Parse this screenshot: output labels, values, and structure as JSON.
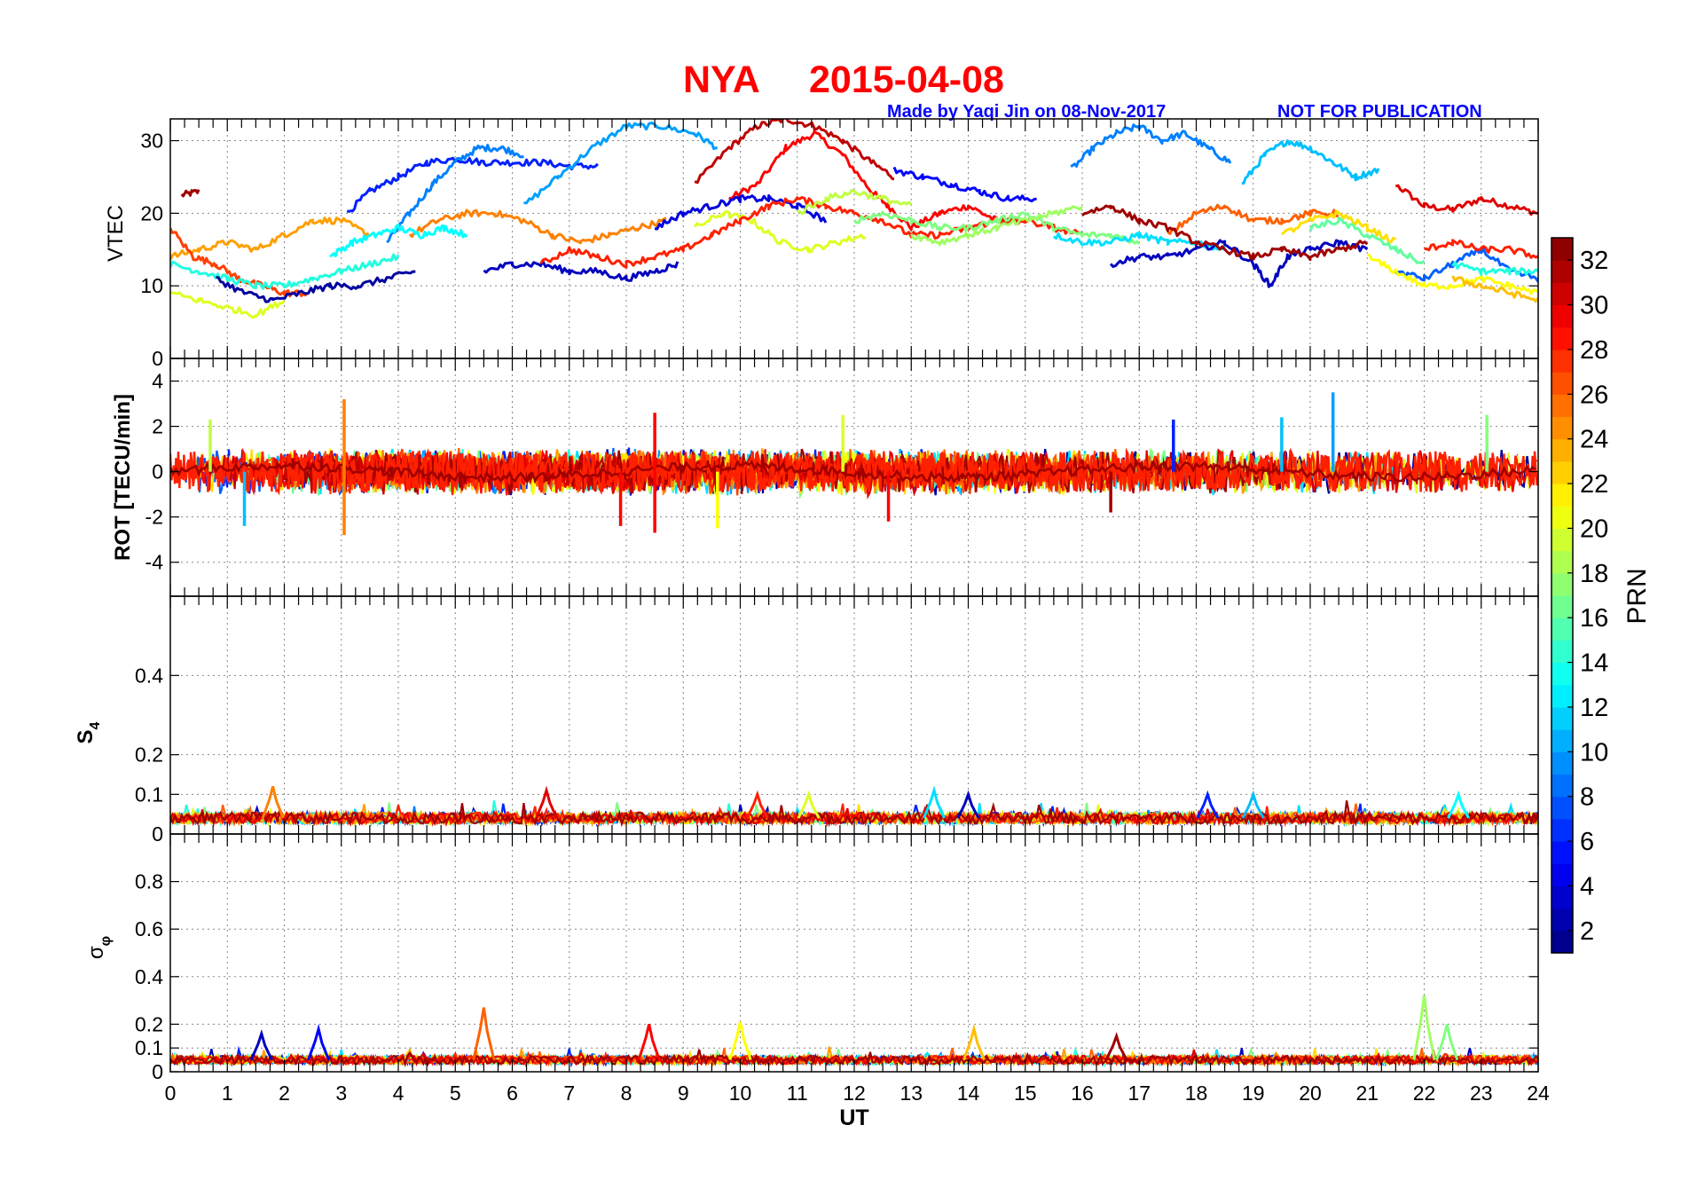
{
  "title": {
    "station": "NYA",
    "date": "2015-04-08",
    "credit": "Made by Yaqi Jin on 08-Nov-2017",
    "notice": "NOT FOR PUBLICATION"
  },
  "chart_data": [
    {
      "type": "line",
      "panel": "vtec",
      "ylabel": "VTEC",
      "xlim": [
        0,
        24
      ],
      "ylim": [
        0,
        33
      ],
      "yticks": [
        0,
        10,
        20,
        30
      ],
      "series": [
        {
          "prn": 32,
          "x": [
            0.2,
            0.5
          ],
          "y": [
            22.5,
            23
          ]
        },
        {
          "prn": 30,
          "x": [
            21.5,
            22,
            22.5,
            23,
            23.5,
            24
          ],
          "y": [
            24,
            21,
            20.5,
            22,
            21,
            20
          ]
        },
        {
          "prn": 29,
          "x": [
            9.8,
            10.3,
            10.8,
            11.3,
            11.8,
            12.3,
            12.6,
            13,
            13.5,
            14,
            14.5,
            15
          ],
          "y": [
            22,
            24,
            29,
            31,
            28,
            23,
            21,
            18,
            20,
            21,
            19,
            19
          ]
        },
        {
          "prn": 31,
          "x": [
            9.2,
            9.8,
            10.3,
            10.8,
            11.3,
            11.8,
            12.3,
            12.7
          ],
          "y": [
            24,
            29,
            32,
            33,
            32,
            30,
            27,
            25
          ]
        },
        {
          "prn": 6,
          "x": [
            3.1,
            3.5,
            4,
            4.5,
            5,
            5.5,
            6,
            6.5,
            7,
            7.5
          ],
          "y": [
            20,
            23,
            25,
            27,
            27.5,
            27,
            27,
            27,
            26.5,
            26.5
          ]
        },
        {
          "prn": 9,
          "x": [
            3.8,
            4.2,
            4.6,
            5,
            5.4,
            5.8,
            6.2
          ],
          "y": [
            16,
            20,
            24,
            27,
            29,
            29,
            28
          ]
        },
        {
          "prn": 10,
          "x": [
            6.2,
            6.8,
            7.4,
            8,
            8.6,
            9.2,
            9.6
          ],
          "y": [
            21,
            25,
            29,
            32,
            32,
            31,
            29
          ]
        },
        {
          "prn": 9,
          "x": [
            15.8,
            16.2,
            16.6,
            17,
            17.4,
            17.8,
            18.2,
            18.6
          ],
          "y": [
            26,
            29,
            31,
            32,
            30,
            31,
            29,
            27
          ]
        },
        {
          "prn": 11,
          "x": [
            18.8,
            19.2,
            19.6,
            20,
            20.4,
            20.8,
            21.2
          ],
          "y": [
            24,
            28,
            30,
            29,
            27,
            25,
            26
          ]
        },
        {
          "prn": 5,
          "x": [
            12.7,
            13.2,
            13.7,
            14.2,
            14.7,
            15.2
          ],
          "y": [
            26,
            25,
            24,
            23,
            22,
            22
          ]
        },
        {
          "prn": 24,
          "x": [
            0,
            0.5,
            1,
            1.5,
            2,
            2.5,
            3,
            3.5
          ],
          "y": [
            14,
            15,
            16,
            15,
            17,
            19,
            19,
            17
          ]
        },
        {
          "prn": 25,
          "x": [
            4.2,
            4.7,
            5.2,
            5.7,
            6.2,
            6.7,
            7.2,
            7.7,
            8.2,
            8.7
          ],
          "y": [
            17,
            19,
            20,
            20,
            19,
            17,
            16,
            17,
            18,
            19
          ]
        },
        {
          "prn": 27,
          "x": [
            0,
            0.4,
            0.8,
            1.2,
            1.6,
            2,
            2.4
          ],
          "y": [
            18,
            14,
            13,
            11,
            10,
            9,
            9
          ]
        },
        {
          "prn": 20,
          "x": [
            9.2,
            9.7,
            10.2,
            10.7,
            11.2,
            11.7,
            12.2
          ],
          "y": [
            18,
            20,
            19,
            16,
            15,
            16,
            17
          ]
        },
        {
          "prn": 13,
          "x": [
            2.8,
            3.2,
            3.6,
            4,
            4.4,
            4.8,
            5.2
          ],
          "y": [
            14,
            16,
            17,
            18,
            17,
            18,
            17
          ]
        },
        {
          "prn": 14,
          "x": [
            0,
            0.5,
            1,
            1.5,
            2,
            2.5,
            3,
            3.5,
            4
          ],
          "y": [
            13,
            12,
            11,
            10,
            10,
            11,
            12,
            13,
            14
          ]
        },
        {
          "prn": 2,
          "x": [
            0.8,
            1.3,
            1.8,
            2.3,
            2.8,
            3.3,
            3.8,
            4.3
          ],
          "y": [
            11,
            9,
            8,
            9,
            10,
            10,
            11,
            12
          ]
        },
        {
          "prn": 3,
          "x": [
            5.5,
            6,
            6.5,
            7,
            7.5,
            8,
            8.5,
            8.9
          ],
          "y": [
            12,
            13,
            13,
            12,
            12,
            11,
            12,
            13
          ]
        },
        {
          "prn": 4,
          "x": [
            8.5,
            9,
            9.5,
            10,
            10.5,
            11,
            11.5
          ],
          "y": [
            18,
            20,
            21,
            22,
            22,
            21,
            19
          ]
        },
        {
          "prn": 28,
          "x": [
            6.5,
            7,
            7.5,
            8,
            8.5,
            9,
            9.5,
            10,
            10.5,
            11,
            11.5,
            12,
            12.5,
            13,
            13.5,
            14,
            14.5,
            15,
            15.5,
            16
          ],
          "y": [
            13,
            15,
            14,
            13,
            14,
            15,
            17,
            19,
            21,
            22,
            21,
            20,
            19,
            17,
            17,
            18,
            19,
            19,
            18,
            17
          ]
        },
        {
          "prn": 17,
          "x": [
            12,
            12.5,
            13,
            13.5,
            14,
            14.5,
            15,
            15.5,
            16,
            16.5,
            17
          ],
          "y": [
            19,
            20,
            19,
            18,
            18,
            19,
            20,
            18,
            17,
            17,
            16
          ]
        },
        {
          "prn": 12,
          "x": [
            15.5,
            16,
            16.5,
            17,
            17.5,
            18,
            18.5
          ],
          "y": [
            17,
            16,
            16,
            17,
            16,
            16,
            15
          ]
        },
        {
          "prn": 3,
          "x": [
            16.5,
            17,
            17.5,
            18,
            18.5,
            19,
            19.3,
            19.6,
            20,
            20.5,
            21
          ],
          "y": [
            13,
            14,
            14,
            15,
            16,
            13,
            10,
            14,
            15,
            16,
            15
          ]
        },
        {
          "prn": 26,
          "x": [
            17.5,
            18,
            18.5,
            19,
            19.5,
            20,
            20.5
          ],
          "y": [
            17,
            20,
            21,
            19,
            19,
            20,
            20
          ]
        },
        {
          "prn": 22,
          "x": [
            19.5,
            20,
            20.5,
            21,
            21.5
          ],
          "y": [
            17,
            19,
            20,
            18,
            16
          ]
        },
        {
          "prn": 16,
          "x": [
            20,
            20.5,
            21,
            21.5,
            22
          ],
          "y": [
            18,
            19,
            17,
            15,
            13
          ]
        },
        {
          "prn": 8,
          "x": [
            21.5,
            22,
            22.5,
            23,
            23.5,
            24
          ],
          "y": [
            12,
            11,
            13,
            15,
            12,
            11
          ]
        },
        {
          "prn": 21,
          "x": [
            21,
            21.5,
            22,
            22.5,
            23,
            23.5,
            24
          ],
          "y": [
            14,
            12,
            10,
            10,
            11,
            10,
            9
          ]
        },
        {
          "prn": 28,
          "x": [
            22,
            22.5,
            23,
            23.5,
            24
          ],
          "y": [
            15,
            16,
            15,
            15,
            14
          ]
        },
        {
          "prn": 23,
          "x": [
            22.5,
            23,
            23.5,
            24
          ],
          "y": [
            11,
            10,
            9,
            8
          ]
        },
        {
          "prn": 14,
          "x": [
            22.5,
            23,
            23.5,
            24
          ],
          "y": [
            13,
            12,
            12,
            12
          ]
        },
        {
          "prn": 32,
          "x": [
            16,
            16.5,
            17,
            17.5,
            18,
            18.5,
            19,
            19.5,
            20,
            20.5,
            21
          ],
          "y": [
            20,
            21,
            19,
            18,
            16,
            15,
            14,
            15,
            14,
            15,
            16
          ]
        },
        {
          "prn": 20,
          "x": [
            0,
            0.5,
            1,
            1.5,
            2
          ],
          "y": [
            9,
            8,
            7,
            6,
            8
          ]
        },
        {
          "prn": 18,
          "x": [
            13,
            13.5,
            14,
            14.5,
            15,
            15.5,
            16
          ],
          "y": [
            17,
            16,
            17,
            18,
            19,
            20,
            21
          ]
        },
        {
          "prn": 19,
          "x": [
            11,
            11.5,
            12,
            12.5,
            13
          ],
          "y": [
            20,
            22,
            23,
            22,
            21
          ]
        }
      ]
    },
    {
      "type": "line",
      "panel": "rot",
      "ylabel": "ROT [TECU/min]",
      "xlim": [
        0,
        24
      ],
      "ylim": [
        -5.5,
        5
      ],
      "yticks": [
        -4,
        -2,
        0,
        2,
        4
      ],
      "spikes": [
        {
          "x": 3.05,
          "y": 3.2,
          "prn": 25
        },
        {
          "x": 3.05,
          "y": -2.8,
          "prn": 25
        },
        {
          "x": 8.5,
          "y": 2.6,
          "prn": 29
        },
        {
          "x": 8.5,
          "y": -2.7,
          "prn": 29
        },
        {
          "x": 7.9,
          "y": -2.4,
          "prn": 29
        },
        {
          "x": 20.4,
          "y": 3.5,
          "prn": 10
        },
        {
          "x": 17.6,
          "y": 2.3,
          "prn": 6
        },
        {
          "x": 19.5,
          "y": 2.4,
          "prn": 11
        },
        {
          "x": 23.1,
          "y": 2.5,
          "prn": 17
        },
        {
          "x": 11.8,
          "y": 2.5,
          "prn": 20
        },
        {
          "x": 0.7,
          "y": 2.3,
          "prn": 19
        },
        {
          "x": 9.6,
          "y": -2.5,
          "prn": 21
        },
        {
          "x": 16.5,
          "y": -1.8,
          "prn": 32
        },
        {
          "x": 12.6,
          "y": -2.2,
          "prn": 29
        },
        {
          "x": 1.3,
          "y": -2.4,
          "prn": 11
        }
      ],
      "noise_amplitude": 0.9
    },
    {
      "type": "line",
      "panel": "s4",
      "ylabel": "S4",
      "xlim": [
        0,
        24
      ],
      "ylim": [
        0,
        0.6
      ],
      "yticks": [
        0,
        0.1,
        0.2,
        0.4
      ],
      "baseline": 0.04,
      "peaks": [
        {
          "x": 1.8,
          "y": 0.12,
          "prn": 25
        },
        {
          "x": 6.6,
          "y": 0.11,
          "prn": 30
        },
        {
          "x": 10.3,
          "y": 0.1,
          "prn": 28
        },
        {
          "x": 11.2,
          "y": 0.1,
          "prn": 20
        },
        {
          "x": 13.4,
          "y": 0.11,
          "prn": 12
        },
        {
          "x": 14.0,
          "y": 0.1,
          "prn": 3
        },
        {
          "x": 18.2,
          "y": 0.1,
          "prn": 6
        },
        {
          "x": 19.0,
          "y": 0.1,
          "prn": 11
        },
        {
          "x": 22.6,
          "y": 0.1,
          "prn": 13
        }
      ]
    },
    {
      "type": "line",
      "panel": "sigma_phi",
      "ylabel": "σφ",
      "xlabel": "UT",
      "xlim": [
        0,
        24
      ],
      "ylim": [
        0,
        1
      ],
      "yticks": [
        0,
        0.1,
        0.2,
        0.4,
        0.6,
        0.8
      ],
      "xticks": [
        0,
        1,
        2,
        3,
        4,
        5,
        6,
        7,
        8,
        9,
        10,
        11,
        12,
        13,
        14,
        15,
        16,
        17,
        18,
        19,
        20,
        21,
        22,
        23,
        24
      ],
      "baseline": 0.05,
      "peaks": [
        {
          "x": 5.5,
          "y": 0.27,
          "prn": 26
        },
        {
          "x": 22.0,
          "y": 0.32,
          "prn": 18
        },
        {
          "x": 10.0,
          "y": 0.21,
          "prn": 21
        },
        {
          "x": 8.4,
          "y": 0.2,
          "prn": 29
        },
        {
          "x": 1.6,
          "y": 0.16,
          "prn": 3
        },
        {
          "x": 2.6,
          "y": 0.18,
          "prn": 5
        },
        {
          "x": 14.1,
          "y": 0.18,
          "prn": 23
        },
        {
          "x": 22.4,
          "y": 0.2,
          "prn": 17
        },
        {
          "x": 16.6,
          "y": 0.15,
          "prn": 32
        }
      ]
    }
  ],
  "colorbar": {
    "label": "PRN",
    "ticks": [
      "2",
      "4",
      "6",
      "8",
      "10",
      "12",
      "14",
      "16",
      "18",
      "20",
      "22",
      "24",
      "26",
      "28",
      "30",
      "32"
    ],
    "range": [
      1,
      33
    ],
    "colormap": "jet"
  }
}
